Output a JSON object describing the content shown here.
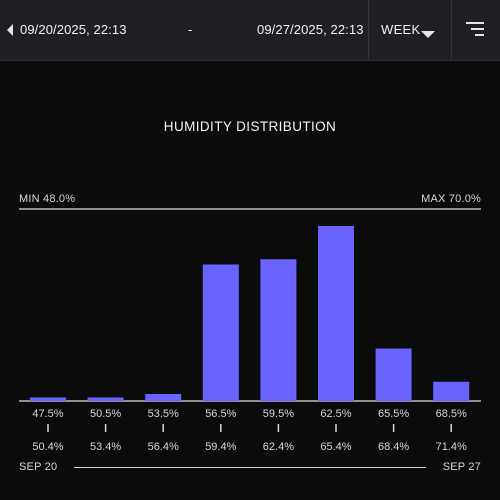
{
  "topbar": {
    "start_datetime": "09/20/2025, 22:13",
    "separator": "-",
    "end_datetime": "09/27/2025, 22:13",
    "period": "WEEK",
    "prev_icon": "chevron-left-icon",
    "period_icon": "caret-down-icon",
    "menu_icon": "filter-menu-icon"
  },
  "chart": {
    "title": "HUMIDITY DISTRIBUTION",
    "min_label": "MIN 48.0%",
    "max_label": "MAX 70.0%"
  },
  "footer": {
    "start": "SEP 20",
    "end": "SEP 27"
  },
  "colors": {
    "bar": "#6b63ff",
    "background": "#0b0b0b",
    "topbar": "#1e2023",
    "axis": "#e0e0e0"
  },
  "chart_data": {
    "type": "bar",
    "title": "HUMIDITY DISTRIBUTION",
    "bins": [
      {
        "from": "47.5%",
        "to": "50.4%",
        "value": 2
      },
      {
        "from": "50.5%",
        "to": "53.4%",
        "value": 2
      },
      {
        "from": "53.5%",
        "to": "56.4%",
        "value": 4
      },
      {
        "from": "56.5%",
        "to": "59.4%",
        "value": 78
      },
      {
        "from": "59.5%",
        "to": "62.4%",
        "value": 81
      },
      {
        "from": "62.5%",
        "to": "65.4%",
        "value": 100
      },
      {
        "from": "65.5%",
        "to": "68.4%",
        "value": 30
      },
      {
        "from": "68.5%",
        "to": "71.4%",
        "value": 11
      }
    ],
    "ylim": [
      0,
      100
    ],
    "grid": false,
    "legend": "none"
  }
}
